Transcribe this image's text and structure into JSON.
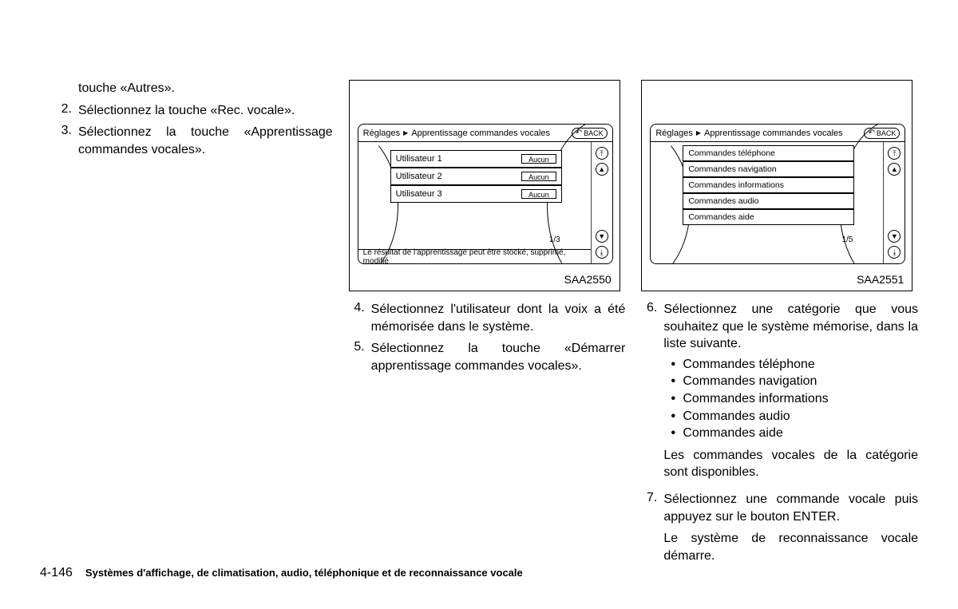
{
  "col1": {
    "continuation": "touche «Autres».",
    "step2_num": "2.",
    "step2": "Sélectionnez la touche «Rec. vocale».",
    "step3_num": "3.",
    "step3": "Sélectionnez la touche «Apprentissage commandes vocales»."
  },
  "fig1": {
    "caption": "SAA2550",
    "breadcrumb_a": "Réglages",
    "breadcrumb_b": "Apprentissage commandes vocales",
    "back": "BACK",
    "rows": [
      {
        "label": "Utilisateur 1",
        "value": "Aucun"
      },
      {
        "label": "Utilisateur 2",
        "value": "Aucun"
      },
      {
        "label": "Utilisateur 3",
        "value": "Aucun"
      }
    ],
    "pager": "1/3",
    "footer": "Le résultat de l'apprentissage peut être stocké, supprimé, modifié"
  },
  "col2": {
    "step4_num": "4.",
    "step4": "Sélectionnez l'utilisateur dont la voix a été mémorisée dans le système.",
    "step5_num": "5.",
    "step5": "Sélectionnez la touche «Démarrer apprentissage commandes vocales»."
  },
  "fig2": {
    "caption": "SAA2551",
    "breadcrumb_a": "Réglages",
    "breadcrumb_b": "Apprentissage commandes vocales",
    "back": "BACK",
    "rows": [
      "Commandes téléphone",
      "Commandes navigation",
      "Commandes informations",
      "Commandes audio",
      "Commandes aide"
    ],
    "pager": "1/5"
  },
  "col3": {
    "step6_num": "6.",
    "step6": "Sélectionnez une catégorie que vous souhaitez que le système mémorise, dans la liste suivante.",
    "bullets": [
      "Commandes téléphone",
      "Commandes navigation",
      "Commandes informations",
      "Commandes audio",
      "Commandes aide"
    ],
    "note6": "Les commandes vocales de la catégorie sont disponibles.",
    "step7_num": "7.",
    "step7": "Sélectionnez une commande vocale puis appuyez sur le bouton ENTER.",
    "note7": "Le système de reconnaissance vocale démarre."
  },
  "footer": {
    "page": "4-146",
    "title": "Systèmes d'affichage, de climatisation, audio, téléphonique et de reconnaissance vocale"
  }
}
